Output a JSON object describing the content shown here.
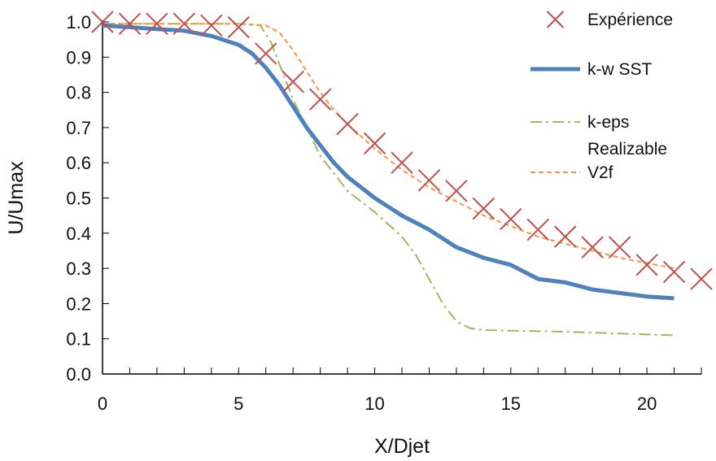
{
  "chart_data": {
    "type": "line",
    "title": "",
    "xlabel": "X/Djet",
    "ylabel": "U/Umax",
    "xlim": [
      0,
      22
    ],
    "ylim": [
      0,
      1.0
    ],
    "x_ticks": [
      "0",
      "5",
      "10",
      "15",
      "20"
    ],
    "x_tick_values": [
      0,
      5,
      10,
      15,
      20
    ],
    "y_ticks": [
      "0.0",
      "0.1",
      "0.2",
      "0.3",
      "0.4",
      "0.5",
      "0.6",
      "0.7",
      "0.8",
      "0.9",
      "1.0"
    ],
    "y_tick_values": [
      0,
      0.1,
      0.2,
      0.3,
      0.4,
      0.5,
      0.6,
      0.7,
      0.8,
      0.9,
      1.0
    ],
    "grid": false,
    "legend_position": "right",
    "series": [
      {
        "name": "Expérience",
        "style": "markers-x",
        "color": "#c0504d",
        "x": [
          0,
          1,
          2,
          3,
          4,
          5,
          6,
          7,
          8,
          9,
          10,
          11,
          12,
          13,
          14,
          15,
          16,
          17,
          18,
          19,
          20,
          21,
          22
        ],
        "y": [
          1.0,
          0.995,
          0.995,
          0.995,
          0.99,
          0.985,
          0.91,
          0.83,
          0.78,
          0.71,
          0.655,
          0.6,
          0.55,
          0.52,
          0.47,
          0.44,
          0.41,
          0.39,
          0.36,
          0.36,
          0.31,
          0.29,
          0.27
        ]
      },
      {
        "name": "k-w SST",
        "style": "solid-thick",
        "color": "#4f81bd",
        "x": [
          0,
          1,
          2,
          3,
          4,
          5,
          5.5,
          6,
          6.5,
          7,
          7.5,
          8,
          8.5,
          9,
          9.5,
          10,
          10.5,
          11,
          12,
          13,
          14,
          15,
          16,
          17,
          18,
          19,
          20,
          21
        ],
        "y": [
          0.99,
          0.985,
          0.98,
          0.975,
          0.96,
          0.935,
          0.91,
          0.87,
          0.82,
          0.76,
          0.7,
          0.65,
          0.6,
          0.56,
          0.53,
          0.5,
          0.475,
          0.45,
          0.41,
          0.36,
          0.33,
          0.31,
          0.27,
          0.26,
          0.24,
          0.23,
          0.22,
          0.215
        ]
      },
      {
        "name": "k-eps Realizable",
        "style": "dash-dot",
        "color": "#9bbb59",
        "x": [
          0,
          3,
          5,
          5.8,
          6.2,
          6.6,
          7,
          7.5,
          8,
          9,
          10,
          11,
          11.5,
          12,
          12.5,
          13,
          13.5,
          14,
          15,
          17,
          19,
          21
        ],
        "y": [
          0.995,
          0.995,
          0.995,
          0.99,
          0.94,
          0.86,
          0.78,
          0.7,
          0.62,
          0.52,
          0.46,
          0.39,
          0.34,
          0.27,
          0.2,
          0.15,
          0.13,
          0.125,
          0.123,
          0.12,
          0.115,
          0.11
        ]
      },
      {
        "name": "V2f",
        "style": "dashed",
        "color": "#f79646",
        "x": [
          0,
          3,
          5,
          6,
          6.5,
          7,
          7.5,
          8,
          8.5,
          9,
          10,
          11,
          12,
          13,
          14,
          15,
          16,
          17,
          18,
          19,
          20,
          21
        ],
        "y": [
          0.995,
          0.995,
          0.995,
          0.99,
          0.97,
          0.92,
          0.86,
          0.8,
          0.75,
          0.71,
          0.64,
          0.58,
          0.53,
          0.49,
          0.45,
          0.42,
          0.39,
          0.37,
          0.35,
          0.33,
          0.315,
          0.3
        ]
      }
    ],
    "legend": [
      {
        "label": "Expérience"
      },
      {
        "label": "k-w SST"
      },
      {
        "label": "k-eps"
      },
      {
        "label": "Realizable"
      },
      {
        "label": "V2f"
      }
    ]
  }
}
